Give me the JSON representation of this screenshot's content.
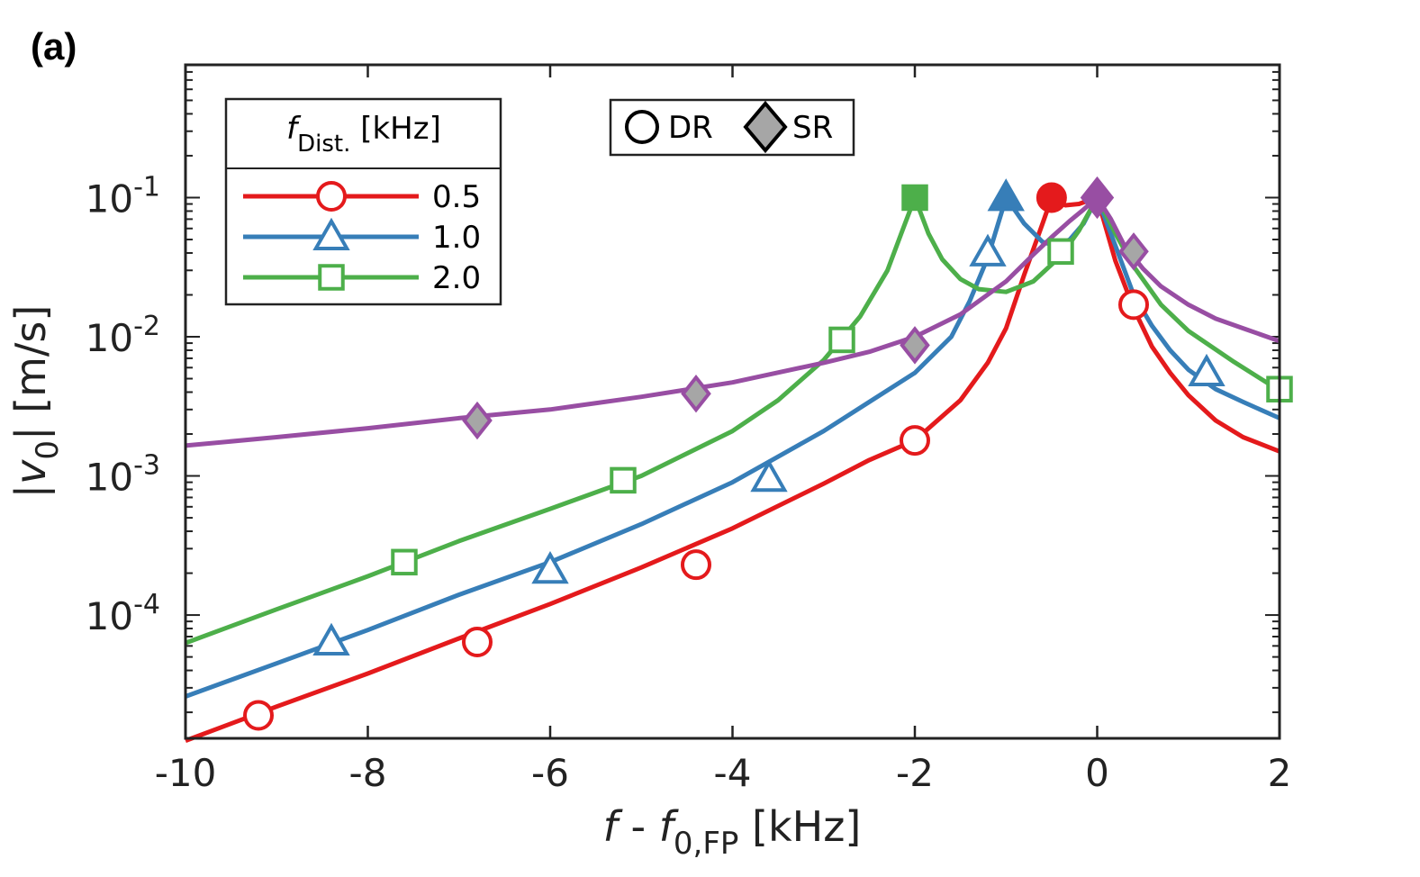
{
  "panel_label": "(a)",
  "chart_data": {
    "type": "line",
    "title": "",
    "xlabel": {
      "main": "f",
      "minus": " - ",
      "sub_var": "f",
      "sub": "0,FP",
      "unit": " [kHz]"
    },
    "ylabel": {
      "pre": "|",
      "var": "v",
      "sub": "0",
      "post": "| [m/s]"
    },
    "xlim": [
      -10,
      2
    ],
    "ylim": [
      1.3e-05,
      0.9
    ],
    "yscale": "log",
    "x_ticks": [
      -10,
      -8,
      -6,
      -4,
      -2,
      0,
      2
    ],
    "x_tick_labels": [
      "-10",
      "-8",
      "-6",
      "-4",
      "-2",
      "0",
      "2"
    ],
    "y_ticks": [
      {
        "value": 0.1,
        "base": "10",
        "exp": "-1"
      },
      {
        "value": 0.01,
        "base": "10",
        "exp": "-2"
      },
      {
        "value": 0.001,
        "base": "10",
        "exp": "-3"
      },
      {
        "value": 0.0001,
        "base": "10",
        "exp": "-4"
      }
    ],
    "series": [
      {
        "name": "0.5",
        "color": "#e41a1c",
        "marker": "circle",
        "peak": -0.5,
        "curve_x": [
          -10,
          -9,
          -8,
          -7,
          -6,
          -5,
          -4,
          -3,
          -2.5,
          -2,
          -1.5,
          -1.2,
          -1,
          -0.8,
          -0.6,
          -0.5,
          -0.35,
          -0.2,
          -0.1,
          0,
          0.2,
          0.4,
          0.6,
          0.8,
          1,
          1.3,
          1.6,
          2
        ],
        "curve_y": [
          1.25e-05,
          2.2e-05,
          3.8e-05,
          6.8e-05,
          0.00012,
          0.00022,
          0.00042,
          0.00088,
          0.0013,
          0.0018,
          0.0035,
          0.0065,
          0.0115,
          0.028,
          0.065,
          0.1,
          0.088,
          0.09,
          0.095,
          0.1,
          0.035,
          0.016,
          0.0085,
          0.0055,
          0.0038,
          0.0025,
          0.0019,
          0.0015
        ],
        "markers_x": [
          -9.2,
          -6.8,
          -4.4,
          -2.0,
          0.4
        ],
        "markers_y": [
          1.9e-05,
          6.4e-05,
          0.00023,
          0.0018,
          0.017
        ]
      },
      {
        "name": "1.0",
        "color": "#377eb8",
        "marker": "triangle",
        "peak": -1.0,
        "curve_x": [
          -10,
          -9,
          -8,
          -7,
          -6,
          -5,
          -4,
          -3,
          -2.5,
          -2,
          -1.6,
          -1.4,
          -1.2,
          -1,
          -0.8,
          -0.6,
          -0.45,
          -0.3,
          -0.15,
          0,
          0.2,
          0.4,
          0.6,
          0.8,
          1,
          1.3,
          1.6,
          2
        ],
        "curve_y": [
          2.6e-05,
          4.5e-05,
          7.8e-05,
          0.00014,
          0.00024,
          0.00045,
          0.0009,
          0.0021,
          0.0034,
          0.0055,
          0.01,
          0.018,
          0.037,
          0.1,
          0.065,
          0.048,
          0.045,
          0.05,
          0.065,
          0.1,
          0.045,
          0.02,
          0.012,
          0.008,
          0.0058,
          0.0042,
          0.0034,
          0.0026
        ],
        "markers_x": [
          -8.4,
          -6.0,
          -3.6,
          -1.2,
          1.2
        ],
        "markers_y": [
          6.4e-05,
          0.00021,
          0.00096,
          0.04,
          0.0055
        ]
      },
      {
        "name": "2.0",
        "color": "#4daf4a",
        "marker": "square",
        "peak": -2.0,
        "curve_x": [
          -10,
          -9,
          -8,
          -7,
          -6,
          -5,
          -4,
          -3.5,
          -3,
          -2.6,
          -2.3,
          -2.15,
          -2,
          -1.85,
          -1.7,
          -1.5,
          -1.3,
          -1,
          -0.7,
          -0.4,
          -0.2,
          0,
          0.2,
          0.4,
          0.7,
          1,
          1.5,
          2
        ],
        "curve_y": [
          6.3e-05,
          0.00011,
          0.00019,
          0.00034,
          0.00058,
          0.001,
          0.0021,
          0.0035,
          0.0068,
          0.014,
          0.03,
          0.055,
          0.1,
          0.055,
          0.036,
          0.026,
          0.022,
          0.021,
          0.025,
          0.038,
          0.058,
          0.1,
          0.055,
          0.032,
          0.017,
          0.011,
          0.0066,
          0.0041
        ],
        "markers_x": [
          -7.6,
          -5.2,
          -2.8,
          -0.4,
          2.0
        ],
        "markers_y": [
          0.00024,
          0.00093,
          0.0095,
          0.041,
          0.0042
        ]
      },
      {
        "name": "SR",
        "color": "#984ea3",
        "marker": "diamond",
        "peak": 0.0,
        "curve_x": [
          -10,
          -9,
          -8,
          -7,
          -6,
          -5,
          -4,
          -3,
          -2.5,
          -2,
          -1.5,
          -1,
          -0.7,
          -0.5,
          -0.3,
          -0.15,
          0,
          0.15,
          0.3,
          0.5,
          0.7,
          1,
          1.3,
          1.6,
          2
        ],
        "curve_y": [
          0.00165,
          0.0019,
          0.0022,
          0.0026,
          0.003,
          0.0037,
          0.0047,
          0.0065,
          0.0078,
          0.01,
          0.0145,
          0.025,
          0.039,
          0.052,
          0.068,
          0.082,
          0.1,
          0.07,
          0.045,
          0.031,
          0.023,
          0.017,
          0.0135,
          0.0115,
          0.0093
        ],
        "markers_x": [
          -6.8,
          -4.4,
          -2.0,
          0.4
        ],
        "markers_y": [
          0.0025,
          0.0039,
          0.0087,
          0.041
        ]
      }
    ],
    "legend_series": {
      "header_var": "f",
      "header_sub": "Dist.",
      "header_unit": " [kHz]",
      "entries": [
        "0.5",
        "1.0",
        "2.0"
      ],
      "placement": "top-left"
    },
    "legend_type": {
      "entries": [
        "DR",
        "SR"
      ],
      "placement": "top-center"
    },
    "colors": {
      "red": "#e41a1c",
      "blue": "#377eb8",
      "green": "#4daf4a",
      "purple": "#984ea3",
      "gray": "#a6a6a6"
    }
  }
}
